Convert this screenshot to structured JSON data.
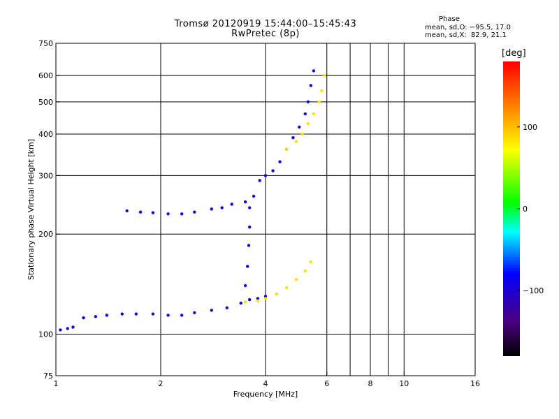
{
  "header": {
    "title_line1": "Tromsø 20120919 15:44:00–15:45:43",
    "title_line2": "RwPretec (8p)",
    "phase_label": "Phase",
    "stat_o": "mean, sd,O: −95.5, 17.0",
    "stat_x": "mean, sd,X:  82.9, 21.1"
  },
  "colorbar": {
    "unit": "[deg]",
    "ticks": [
      "100",
      "0",
      "−100"
    ],
    "tick_values": [
      100,
      0,
      -100
    ],
    "range": [
      -180,
      180
    ]
  },
  "chart_data": {
    "type": "scatter",
    "title": "Tromsø 20120919 15:44:00–15:45:43",
    "subtitle": "RwPretec (8p)",
    "xlabel": "Frequency [MHz]",
    "ylabel": "Stationary phase Virtual Height [km]",
    "xscale": "log",
    "yscale": "log",
    "xlim": [
      1,
      16
    ],
    "ylim": [
      75,
      750
    ],
    "xticks": [
      1,
      2,
      4,
      6,
      8,
      10,
      16
    ],
    "xtick_labels": [
      "1",
      "2",
      "4",
      "6",
      "8",
      "10",
      "16"
    ],
    "xgrid": [
      2,
      4,
      6,
      8,
      10
    ],
    "xminor": [
      7,
      9
    ],
    "yticks": [
      75,
      100,
      200,
      300,
      400,
      500,
      600,
      750
    ],
    "ytick_labels": [
      "75",
      "100",
      "200",
      "300",
      "400",
      "500",
      "600",
      "750"
    ],
    "ygrid": [
      100,
      200,
      300,
      400,
      500,
      600
    ],
    "grid": true,
    "color_encoding": "phase [deg]",
    "traces": [
      {
        "name": "",
        "phase": -95,
        "points": [
          [
            1.03,
            103
          ],
          [
            1.08,
            104
          ],
          [
            1.12,
            105
          ],
          [
            1.2,
            112
          ],
          [
            1.3,
            113
          ],
          [
            1.4,
            114
          ],
          [
            1.55,
            115
          ],
          [
            1.7,
            115
          ],
          [
            1.9,
            115
          ],
          [
            2.1,
            114
          ],
          [
            2.3,
            114
          ],
          [
            2.5,
            116
          ],
          [
            2.8,
            118
          ],
          [
            3.1,
            120
          ],
          [
            3.4,
            124
          ],
          [
            3.6,
            127
          ],
          [
            3.8,
            128
          ],
          [
            4.0,
            130
          ]
        ]
      },
      {
        "name": "",
        "phase": -95,
        "points": [
          [
            1.6,
            235
          ],
          [
            1.75,
            233
          ],
          [
            1.9,
            232
          ],
          [
            2.1,
            230
          ],
          [
            2.3,
            230
          ],
          [
            2.5,
            233
          ],
          [
            2.8,
            238
          ],
          [
            3.0,
            240
          ],
          [
            3.2,
            246
          ],
          [
            3.5,
            250
          ]
        ]
      },
      {
        "name": "",
        "phase": -95,
        "points": [
          [
            3.5,
            140
          ],
          [
            3.55,
            160
          ],
          [
            3.58,
            185
          ],
          [
            3.6,
            210
          ],
          [
            3.6,
            240
          ],
          [
            3.7,
            260
          ]
        ]
      },
      {
        "name": "",
        "phase": -95,
        "points": [
          [
            3.85,
            290
          ],
          [
            4.0,
            300
          ],
          [
            4.2,
            310
          ],
          [
            4.4,
            330
          ],
          [
            4.6,
            360
          ],
          [
            4.8,
            390
          ],
          [
            5.0,
            420
          ],
          [
            5.2,
            460
          ],
          [
            5.3,
            500
          ],
          [
            5.4,
            560
          ],
          [
            5.5,
            620
          ]
        ]
      },
      {
        "name": "",
        "phase": 85,
        "points": [
          [
            3.5,
            125
          ],
          [
            3.8,
            126
          ],
          [
            4.0,
            128
          ],
          [
            4.3,
            132
          ],
          [
            4.6,
            138
          ],
          [
            4.9,
            146
          ],
          [
            5.2,
            155
          ],
          [
            5.4,
            165
          ]
        ]
      },
      {
        "name": "",
        "phase": 85,
        "points": [
          [
            4.6,
            360
          ],
          [
            4.9,
            380
          ],
          [
            5.1,
            400
          ],
          [
            5.3,
            430
          ],
          [
            5.5,
            460
          ],
          [
            5.7,
            500
          ],
          [
            5.8,
            540
          ],
          [
            5.9,
            600
          ]
        ]
      }
    ]
  }
}
